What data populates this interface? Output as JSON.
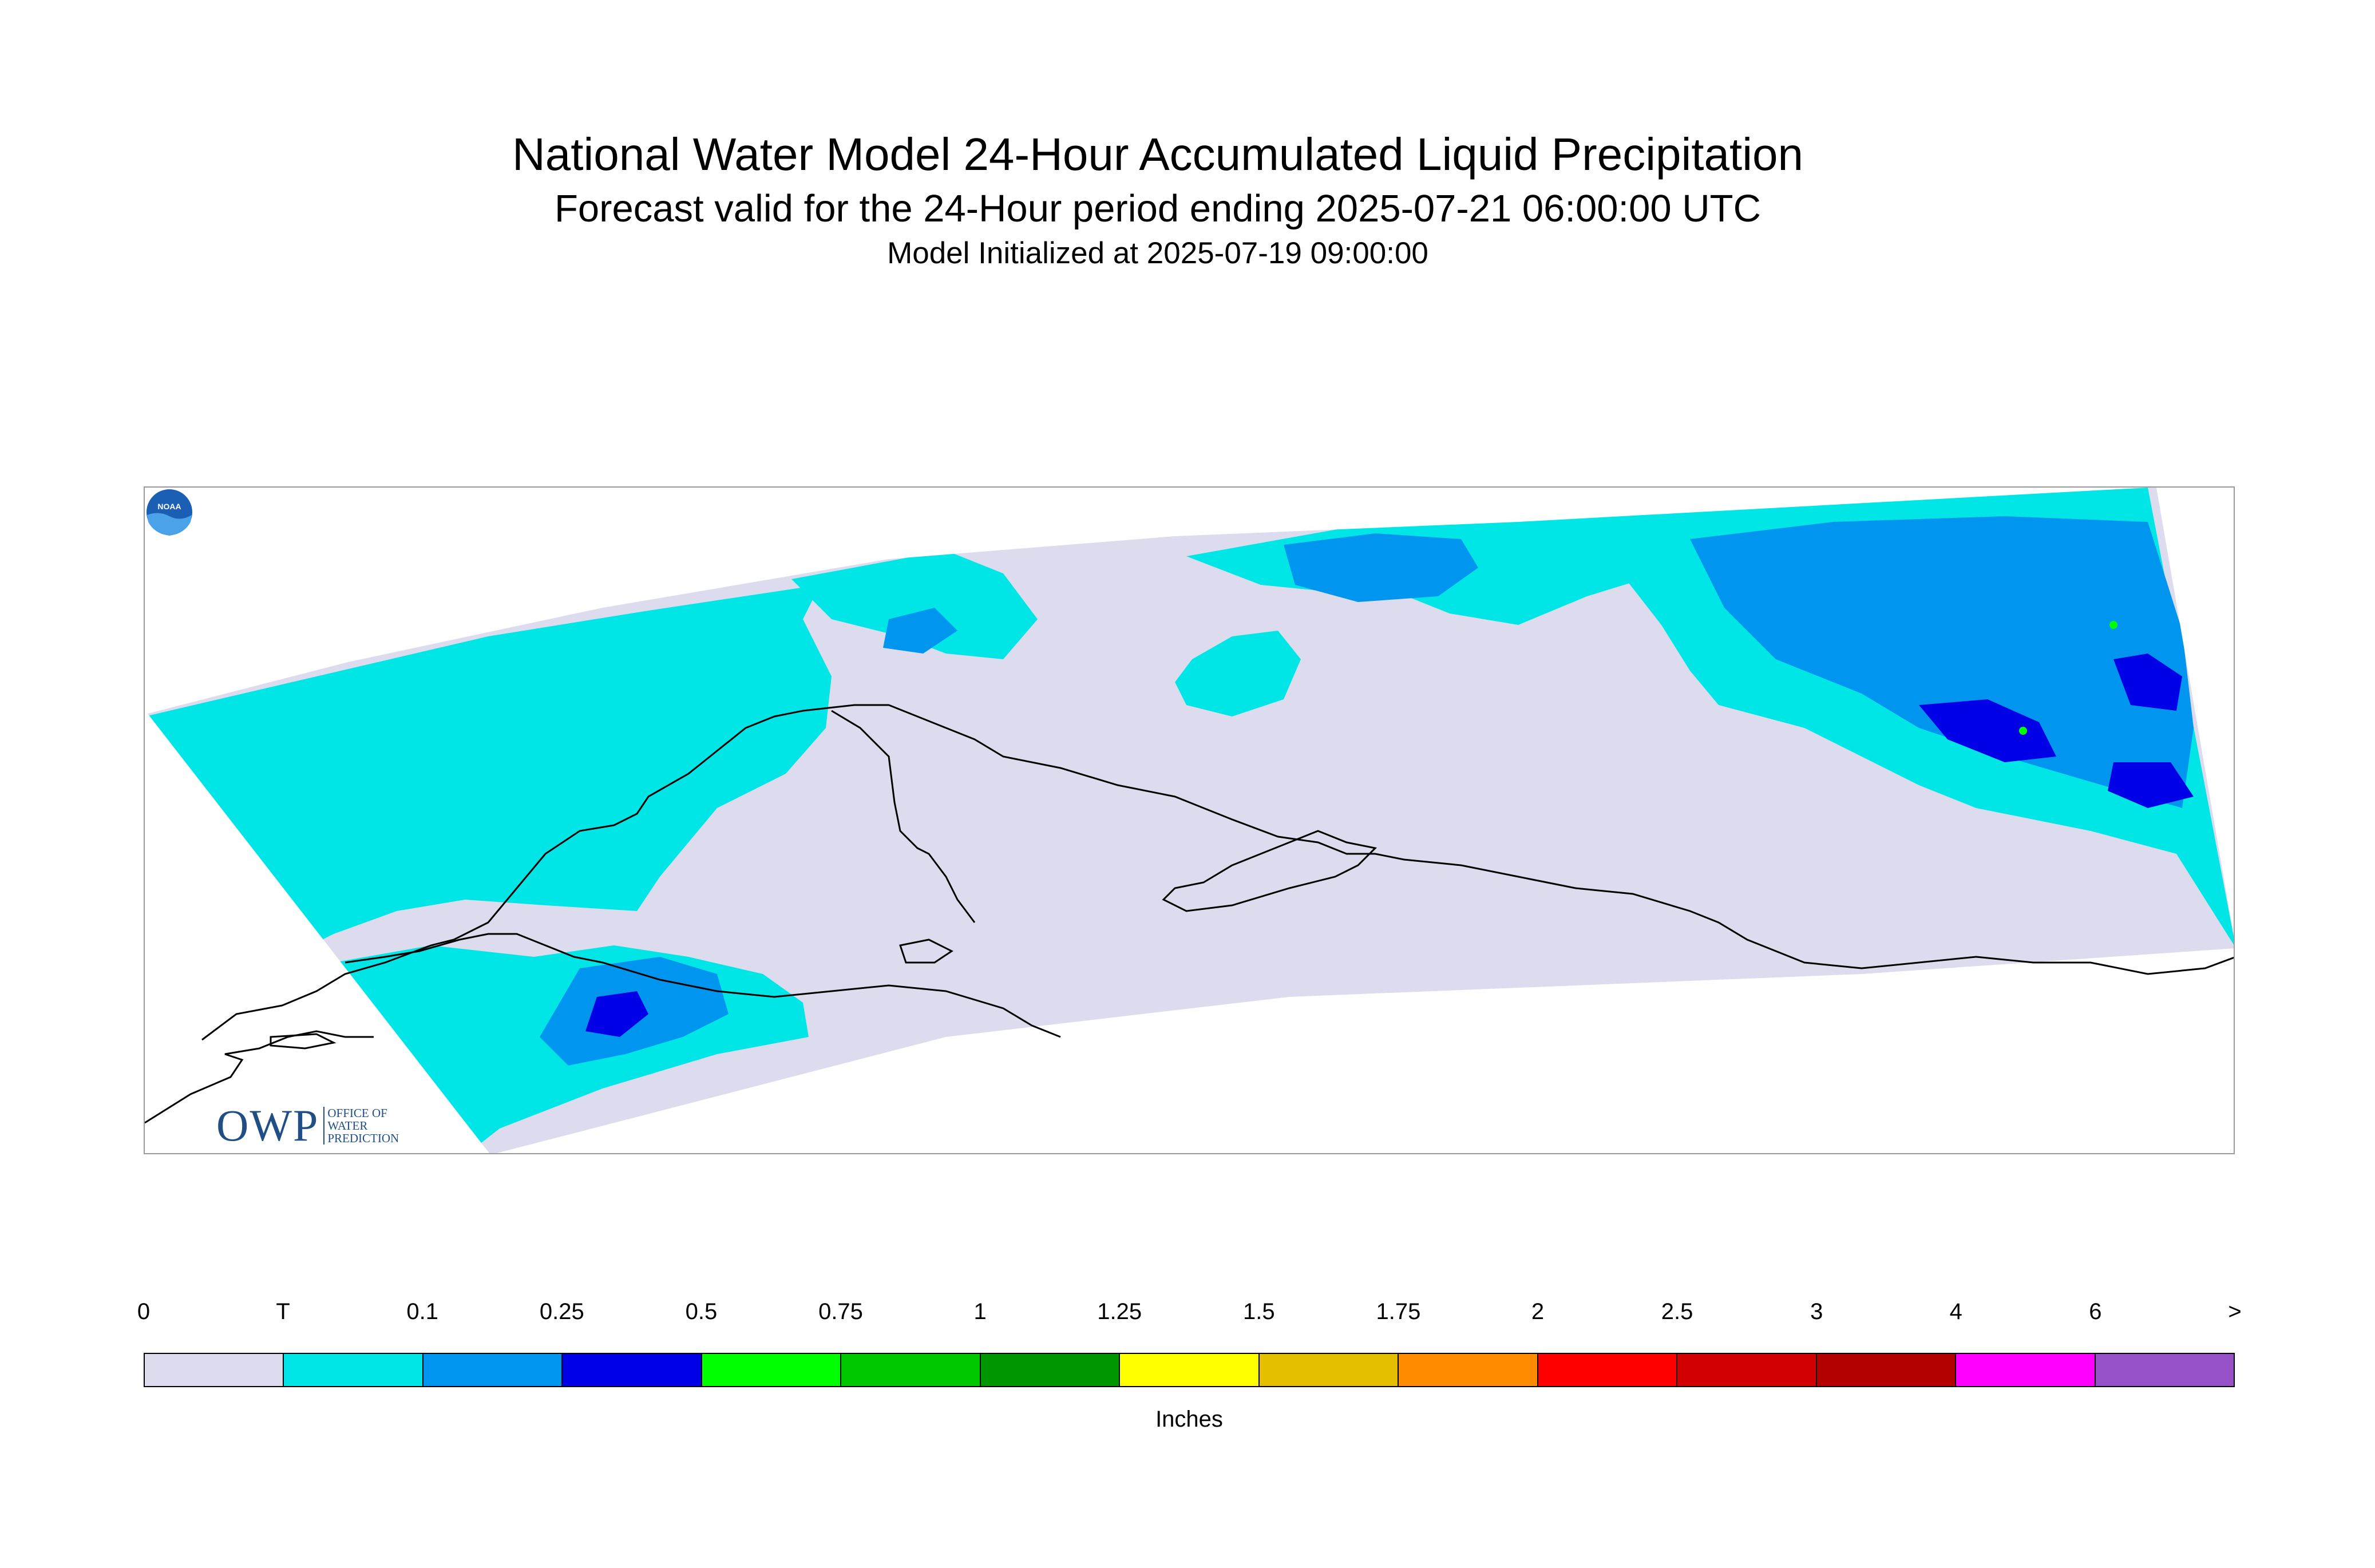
{
  "title": "National Water Model 24-Hour Accumulated Liquid Precipitation",
  "subtitle": "Forecast valid for the 24-Hour period ending 2025-07-21 06:00:00 UTC",
  "initialized": "Model Initialized at 2025-07-19 09:00:00",
  "logos": {
    "owp_letters": "OWP",
    "owp_line1": "OFFICE OF",
    "owp_line2": "WATER",
    "owp_line3": "PREDICTION",
    "noaa": "NOAA"
  },
  "legend": {
    "units": "Inches",
    "labels": [
      "0",
      "T",
      "0.1",
      "0.25",
      "0.5",
      "0.75",
      "1",
      "1.25",
      "1.5",
      "1.75",
      "2",
      "2.5",
      "3",
      "4",
      "6",
      ">"
    ],
    "colors": [
      "#dcdcee",
      "#00e6e6",
      "#0096f0",
      "#0000e6",
      "#00ff00",
      "#00c800",
      "#009600",
      "#ffff00",
      "#e6be00",
      "#ff8c00",
      "#ff0000",
      "#d20000",
      "#b40000",
      "#ff00ff",
      "#9650c8"
    ]
  },
  "map": {
    "no_rain_color": "#dcdcee",
    "trace_color": "#00e6e6",
    "light_color": "#0096f0",
    "moderate_color": "#0000e6",
    "heavy_color": "#00ff00",
    "coastline_color": "#000000"
  }
}
